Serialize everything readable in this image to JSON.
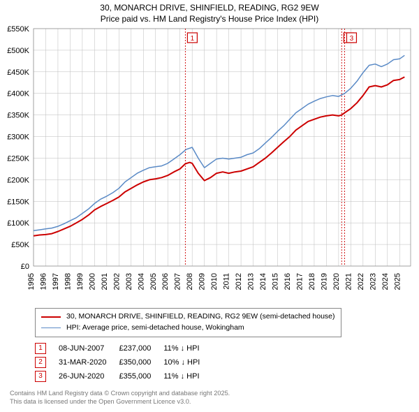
{
  "title_line1": "30, MONARCH DRIVE, SHINFIELD, READING, RG2 9EW",
  "title_line2": "Price paid vs. HM Land Registry's House Price Index (HPI)",
  "chart": {
    "type": "line",
    "background_color": "#ffffff",
    "grid_color": "#bbbbbb",
    "xlim": [
      1995,
      2025.9
    ],
    "ylim": [
      0,
      550
    ],
    "ytick_step": 50,
    "ytick_prefix": "£",
    "ytick_suffix": "K",
    "ytick_zero": "£0",
    "xticks": [
      1995,
      1996,
      1997,
      1998,
      1999,
      2000,
      2001,
      2002,
      2003,
      2004,
      2005,
      2006,
      2007,
      2008,
      2009,
      2010,
      2011,
      2012,
      2013,
      2014,
      2015,
      2016,
      2017,
      2018,
      2019,
      2020,
      2021,
      2022,
      2023,
      2024,
      2025
    ],
    "series": [
      {
        "name": "price-paid",
        "label": "30, MONARCH DRIVE, SHINFIELD, READING, RG2 9EW (semi-detached house)",
        "color": "#cc0000",
        "line_width": 2.0,
        "points": [
          [
            1995.0,
            70
          ],
          [
            1995.5,
            72
          ],
          [
            1996.0,
            73
          ],
          [
            1996.5,
            75
          ],
          [
            1997.0,
            80
          ],
          [
            1997.5,
            86
          ],
          [
            1998.0,
            92
          ],
          [
            1998.5,
            100
          ],
          [
            1999.0,
            108
          ],
          [
            1999.5,
            118
          ],
          [
            2000.0,
            130
          ],
          [
            2000.5,
            138
          ],
          [
            2001.0,
            145
          ],
          [
            2001.5,
            152
          ],
          [
            2002.0,
            160
          ],
          [
            2002.5,
            172
          ],
          [
            2003.0,
            180
          ],
          [
            2003.5,
            188
          ],
          [
            2004.0,
            195
          ],
          [
            2004.5,
            200
          ],
          [
            2005.0,
            202
          ],
          [
            2005.5,
            205
          ],
          [
            2006.0,
            210
          ],
          [
            2006.5,
            218
          ],
          [
            2007.0,
            225
          ],
          [
            2007.44,
            237
          ],
          [
            2007.8,
            240
          ],
          [
            2008.0,
            238
          ],
          [
            2008.5,
            215
          ],
          [
            2009.0,
            198
          ],
          [
            2009.5,
            205
          ],
          [
            2010.0,
            215
          ],
          [
            2010.5,
            218
          ],
          [
            2011.0,
            215
          ],
          [
            2011.5,
            218
          ],
          [
            2012.0,
            220
          ],
          [
            2012.5,
            225
          ],
          [
            2013.0,
            230
          ],
          [
            2013.5,
            240
          ],
          [
            2014.0,
            250
          ],
          [
            2014.5,
            262
          ],
          [
            2015.0,
            275
          ],
          [
            2015.5,
            288
          ],
          [
            2016.0,
            300
          ],
          [
            2016.5,
            315
          ],
          [
            2017.0,
            325
          ],
          [
            2017.5,
            335
          ],
          [
            2018.0,
            340
          ],
          [
            2018.5,
            345
          ],
          [
            2019.0,
            348
          ],
          [
            2019.5,
            350
          ],
          [
            2020.0,
            348
          ],
          [
            2020.25,
            350
          ],
          [
            2020.49,
            355
          ],
          [
            2021.0,
            365
          ],
          [
            2021.5,
            378
          ],
          [
            2022.0,
            395
          ],
          [
            2022.5,
            415
          ],
          [
            2023.0,
            418
          ],
          [
            2023.5,
            415
          ],
          [
            2024.0,
            420
          ],
          [
            2024.5,
            430
          ],
          [
            2025.0,
            432
          ],
          [
            2025.4,
            438
          ]
        ]
      },
      {
        "name": "hpi",
        "label": "HPI: Average price, semi-detached house, Wokingham",
        "color": "#5a8ac6",
        "line_width": 1.5,
        "points": [
          [
            1995.0,
            82
          ],
          [
            1995.5,
            84
          ],
          [
            1996.0,
            86
          ],
          [
            1996.5,
            88
          ],
          [
            1997.0,
            92
          ],
          [
            1997.5,
            98
          ],
          [
            1998.0,
            105
          ],
          [
            1998.5,
            112
          ],
          [
            1999.0,
            122
          ],
          [
            1999.5,
            132
          ],
          [
            2000.0,
            145
          ],
          [
            2000.5,
            155
          ],
          [
            2001.0,
            162
          ],
          [
            2001.5,
            170
          ],
          [
            2002.0,
            180
          ],
          [
            2002.5,
            195
          ],
          [
            2003.0,
            205
          ],
          [
            2003.5,
            215
          ],
          [
            2004.0,
            222
          ],
          [
            2004.5,
            228
          ],
          [
            2005.0,
            230
          ],
          [
            2005.5,
            232
          ],
          [
            2006.0,
            238
          ],
          [
            2006.5,
            248
          ],
          [
            2007.0,
            258
          ],
          [
            2007.5,
            270
          ],
          [
            2008.0,
            275
          ],
          [
            2008.5,
            250
          ],
          [
            2009.0,
            228
          ],
          [
            2009.5,
            238
          ],
          [
            2010.0,
            248
          ],
          [
            2010.5,
            250
          ],
          [
            2011.0,
            248
          ],
          [
            2011.5,
            250
          ],
          [
            2012.0,
            252
          ],
          [
            2012.5,
            258
          ],
          [
            2013.0,
            262
          ],
          [
            2013.5,
            272
          ],
          [
            2014.0,
            285
          ],
          [
            2014.5,
            298
          ],
          [
            2015.0,
            312
          ],
          [
            2015.5,
            325
          ],
          [
            2016.0,
            340
          ],
          [
            2016.5,
            355
          ],
          [
            2017.0,
            365
          ],
          [
            2017.5,
            375
          ],
          [
            2018.0,
            382
          ],
          [
            2018.5,
            388
          ],
          [
            2019.0,
            392
          ],
          [
            2019.5,
            395
          ],
          [
            2020.0,
            393
          ],
          [
            2020.5,
            400
          ],
          [
            2021.0,
            412
          ],
          [
            2021.5,
            428
          ],
          [
            2022.0,
            448
          ],
          [
            2022.5,
            465
          ],
          [
            2023.0,
            468
          ],
          [
            2023.5,
            462
          ],
          [
            2024.0,
            468
          ],
          [
            2024.5,
            478
          ],
          [
            2025.0,
            480
          ],
          [
            2025.4,
            488
          ]
        ]
      }
    ],
    "markers": [
      {
        "num": "1",
        "x": 2007.44,
        "date": "08-JUN-2007",
        "price": "£237,000",
        "diff": "11% ↓ HPI"
      },
      {
        "num": "2",
        "x": 2020.25,
        "date": "31-MAR-2020",
        "price": "£350,000",
        "diff": "10% ↓ HPI"
      },
      {
        "num": "3",
        "x": 2020.49,
        "date": "26-JUN-2020",
        "price": "£355,000",
        "diff": "11% ↓ HPI"
      }
    ],
    "marker_line_color": "#cc0000",
    "marker_box_border": "#cc0000",
    "axis_font_size": 11,
    "label_font_size": 11
  },
  "attribution_line1": "Contains HM Land Registry data © Crown copyright and database right 2025.",
  "attribution_line2": "This data is licensed under the Open Government Licence v3.0."
}
